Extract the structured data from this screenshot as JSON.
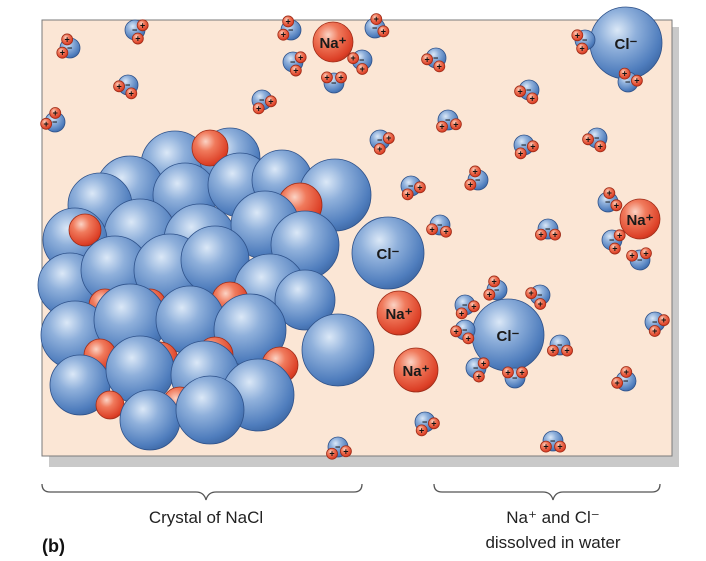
{
  "figure": {
    "panel_letter": "(b)",
    "caption_left": "Crystal of NaCl",
    "caption_right_line1": "Na⁺ and Cl⁻",
    "caption_right_line2": "dissolved in water"
  },
  "ions": {
    "na_label": "Na⁺",
    "cl_label": "Cl⁻",
    "plus_sign": "+",
    "minus_sign": "−"
  },
  "colors": {
    "water_background": "#fbe6d5",
    "chloride_blue": "#4f80c0",
    "sodium_red": "#e8472e",
    "oxygen_blue": "#6c96cc",
    "hydrogen_red": "#e8664e"
  }
}
